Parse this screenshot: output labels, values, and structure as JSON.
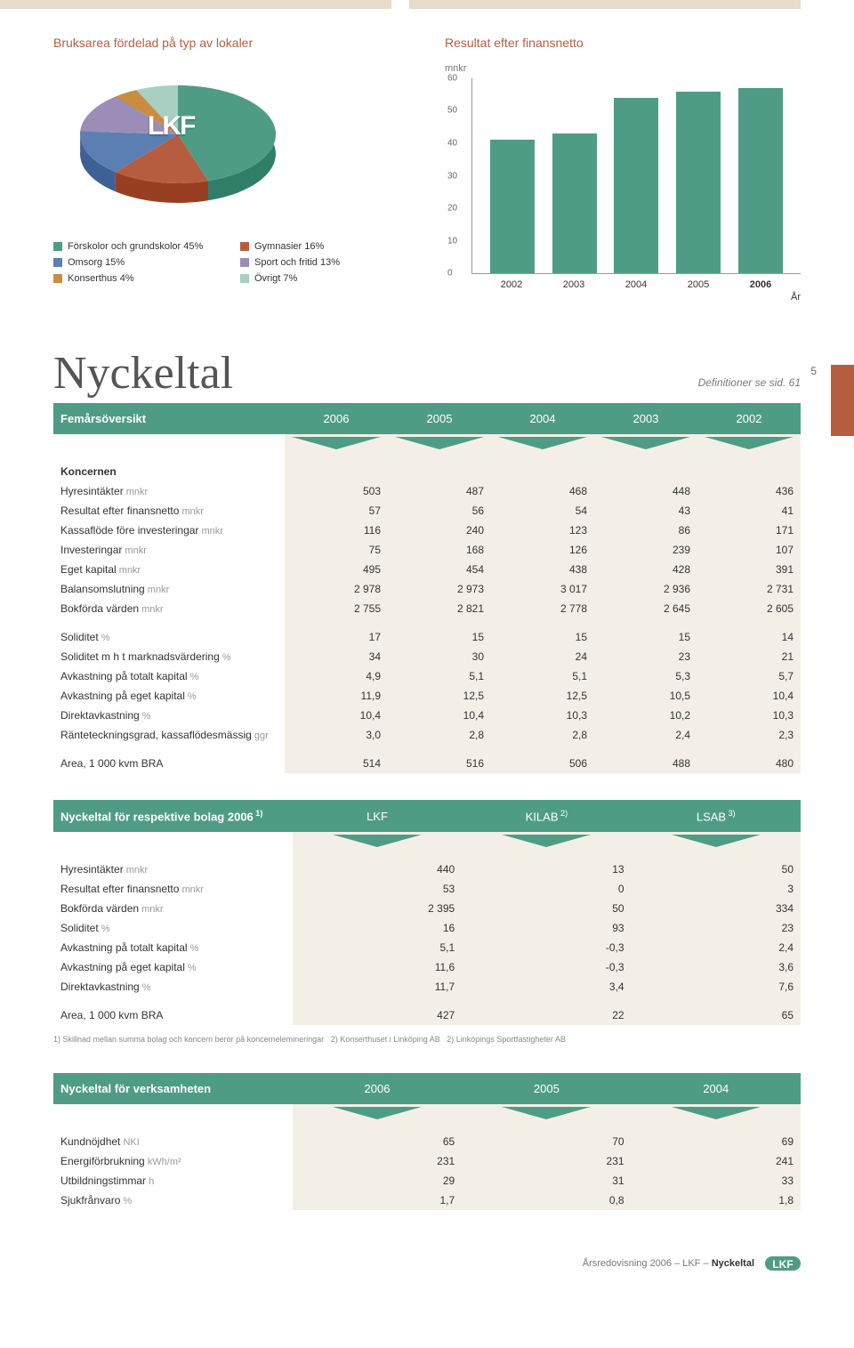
{
  "pie": {
    "title": "Bruksarea fördelad på typ av lokaler",
    "logo": "LKF",
    "items": [
      {
        "label": "Förskolor och grundskolor 45%",
        "value": 45,
        "color": "#4f9c86"
      },
      {
        "label": "Gymnasier 16%",
        "value": 16,
        "color": "#b75d3f"
      },
      {
        "label": "Omsorg 15%",
        "value": 15,
        "color": "#5b7fb3"
      },
      {
        "label": "Sport och fritid 13%",
        "value": 13,
        "color": "#9c8cb8"
      },
      {
        "label": "Konserthus 4%",
        "value": 4,
        "color": "#c98d3f"
      },
      {
        "label": "Övrigt 7%",
        "value": 7,
        "color": "#a8cfc2"
      }
    ]
  },
  "bar": {
    "title": "Resultat efter finansnetto",
    "unit": "mnkr",
    "color": "#4f9c86",
    "ylim": 60,
    "ytick": 10,
    "xaxis_label": "År",
    "categories": [
      "2002",
      "2003",
      "2004",
      "2005",
      "2006"
    ],
    "values": [
      41,
      43,
      54,
      56,
      57
    ]
  },
  "main_title": "Nyckeltal",
  "page_number": "5",
  "defs_note": "Definitioner se sid. 61",
  "table1": {
    "header": "Femårsöversikt",
    "years": [
      "2006",
      "2005",
      "2004",
      "2003",
      "2002"
    ],
    "section1_head": "Koncernen",
    "rows1": [
      {
        "label": "Hyresintäkter",
        "unit": "mnkr",
        "v": [
          "503",
          "487",
          "468",
          "448",
          "436"
        ]
      },
      {
        "label": "Resultat efter finansnetto",
        "unit": "mnkr",
        "v": [
          "57",
          "56",
          "54",
          "43",
          "41"
        ]
      },
      {
        "label": "Kassaflöde före investeringar",
        "unit": "mnkr",
        "v": [
          "116",
          "240",
          "123",
          "86",
          "171"
        ]
      },
      {
        "label": "Investeringar",
        "unit": "mnkr",
        "v": [
          "75",
          "168",
          "126",
          "239",
          "107"
        ]
      },
      {
        "label": "Eget kapital",
        "unit": "mnkr",
        "v": [
          "495",
          "454",
          "438",
          "428",
          "391"
        ]
      },
      {
        "label": "Balansomslutning",
        "unit": "mnkr",
        "v": [
          "2 978",
          "2 973",
          "3 017",
          "2 936",
          "2 731"
        ]
      },
      {
        "label": "Bokförda värden",
        "unit": "mnkr",
        "v": [
          "2 755",
          "2 821",
          "2 778",
          "2 645",
          "2 605"
        ]
      }
    ],
    "rows2": [
      {
        "label": "Soliditet",
        "unit": "%",
        "v": [
          "17",
          "15",
          "15",
          "15",
          "14"
        ]
      },
      {
        "label": "Soliditet m h t marknadsvärdering",
        "unit": "%",
        "v": [
          "34",
          "30",
          "24",
          "23",
          "21"
        ]
      },
      {
        "label": "Avkastning på totalt kapital",
        "unit": "%",
        "v": [
          "4,9",
          "5,1",
          "5,1",
          "5,3",
          "5,7"
        ]
      },
      {
        "label": "Avkastning på eget kapital",
        "unit": "%",
        "v": [
          "11,9",
          "12,5",
          "12,5",
          "10,5",
          "10,4"
        ]
      },
      {
        "label": "Direktavkastning",
        "unit": "%",
        "v": [
          "10,4",
          "10,4",
          "10,3",
          "10,2",
          "10,3"
        ]
      },
      {
        "label": "Ränteteckningsgrad, kassaflödesmässig",
        "unit": "ggr",
        "v": [
          "3,0",
          "2,8",
          "2,8",
          "2,4",
          "2,3"
        ]
      }
    ],
    "rows3": [
      {
        "label": "Area, 1 000 kvm BRA",
        "unit": "",
        "v": [
          "514",
          "516",
          "506",
          "488",
          "480"
        ]
      }
    ]
  },
  "table2": {
    "header": "Nyckeltal för respektive bolag 2006",
    "header_sup": "1)",
    "companies": [
      "LKF",
      "KILAB",
      "LSAB"
    ],
    "companies_sup": [
      "",
      "2)",
      "3)"
    ],
    "rows": [
      {
        "label": "Hyresintäkter",
        "unit": "mnkr",
        "v": [
          "440",
          "13",
          "50"
        ]
      },
      {
        "label": "Resultat efter finansnetto",
        "unit": "mnkr",
        "v": [
          "53",
          "0",
          "3"
        ]
      },
      {
        "label": "Bokförda värden",
        "unit": "mnkr",
        "v": [
          "2 395",
          "50",
          "334"
        ]
      },
      {
        "label": "Soliditet",
        "unit": "%",
        "v": [
          "16",
          "93",
          "23"
        ]
      },
      {
        "label": "Avkastning på totalt kapital",
        "unit": "%",
        "v": [
          "5,1",
          "-0,3",
          "2,4"
        ]
      },
      {
        "label": "Avkastning på eget kapital",
        "unit": "%",
        "v": [
          "11,6",
          "-0,3",
          "3,6"
        ]
      },
      {
        "label": "Direktavkastning",
        "unit": "%",
        "v": [
          "11,7",
          "3,4",
          "7,6"
        ]
      }
    ],
    "rows2": [
      {
        "label": "Area, 1 000 kvm BRA",
        "unit": "",
        "v": [
          "427",
          "22",
          "65"
        ]
      }
    ]
  },
  "footnotes": {
    "f1": "1) Skillnad mellan summa bolag och koncern beror på koncernelemineringar",
    "f2": "2) Konserthuset i Linköping AB",
    "f3": "2) Linköpings Sportfastigheter AB"
  },
  "table3": {
    "header": "Nyckeltal för verksamheten",
    "years": [
      "2006",
      "2005",
      "2004"
    ],
    "rows": [
      {
        "label": "Kundnöjdhet",
        "unit": "NKI",
        "v": [
          "65",
          "70",
          "69"
        ]
      },
      {
        "label": "Energiförbrukning",
        "unit": "kWh/m²",
        "v": [
          "231",
          "231",
          "241"
        ]
      },
      {
        "label": "Utbildningstimmar",
        "unit": "h",
        "v": [
          "29",
          "31",
          "33"
        ]
      },
      {
        "label": "Sjukfrånvaro",
        "unit": "%",
        "v": [
          "1,7",
          "0,8",
          "1,8"
        ]
      }
    ]
  },
  "footer": {
    "text": "Årsredovisning 2006 – LKF –",
    "page_title": "Nyckeltal",
    "logo": "LKF"
  }
}
